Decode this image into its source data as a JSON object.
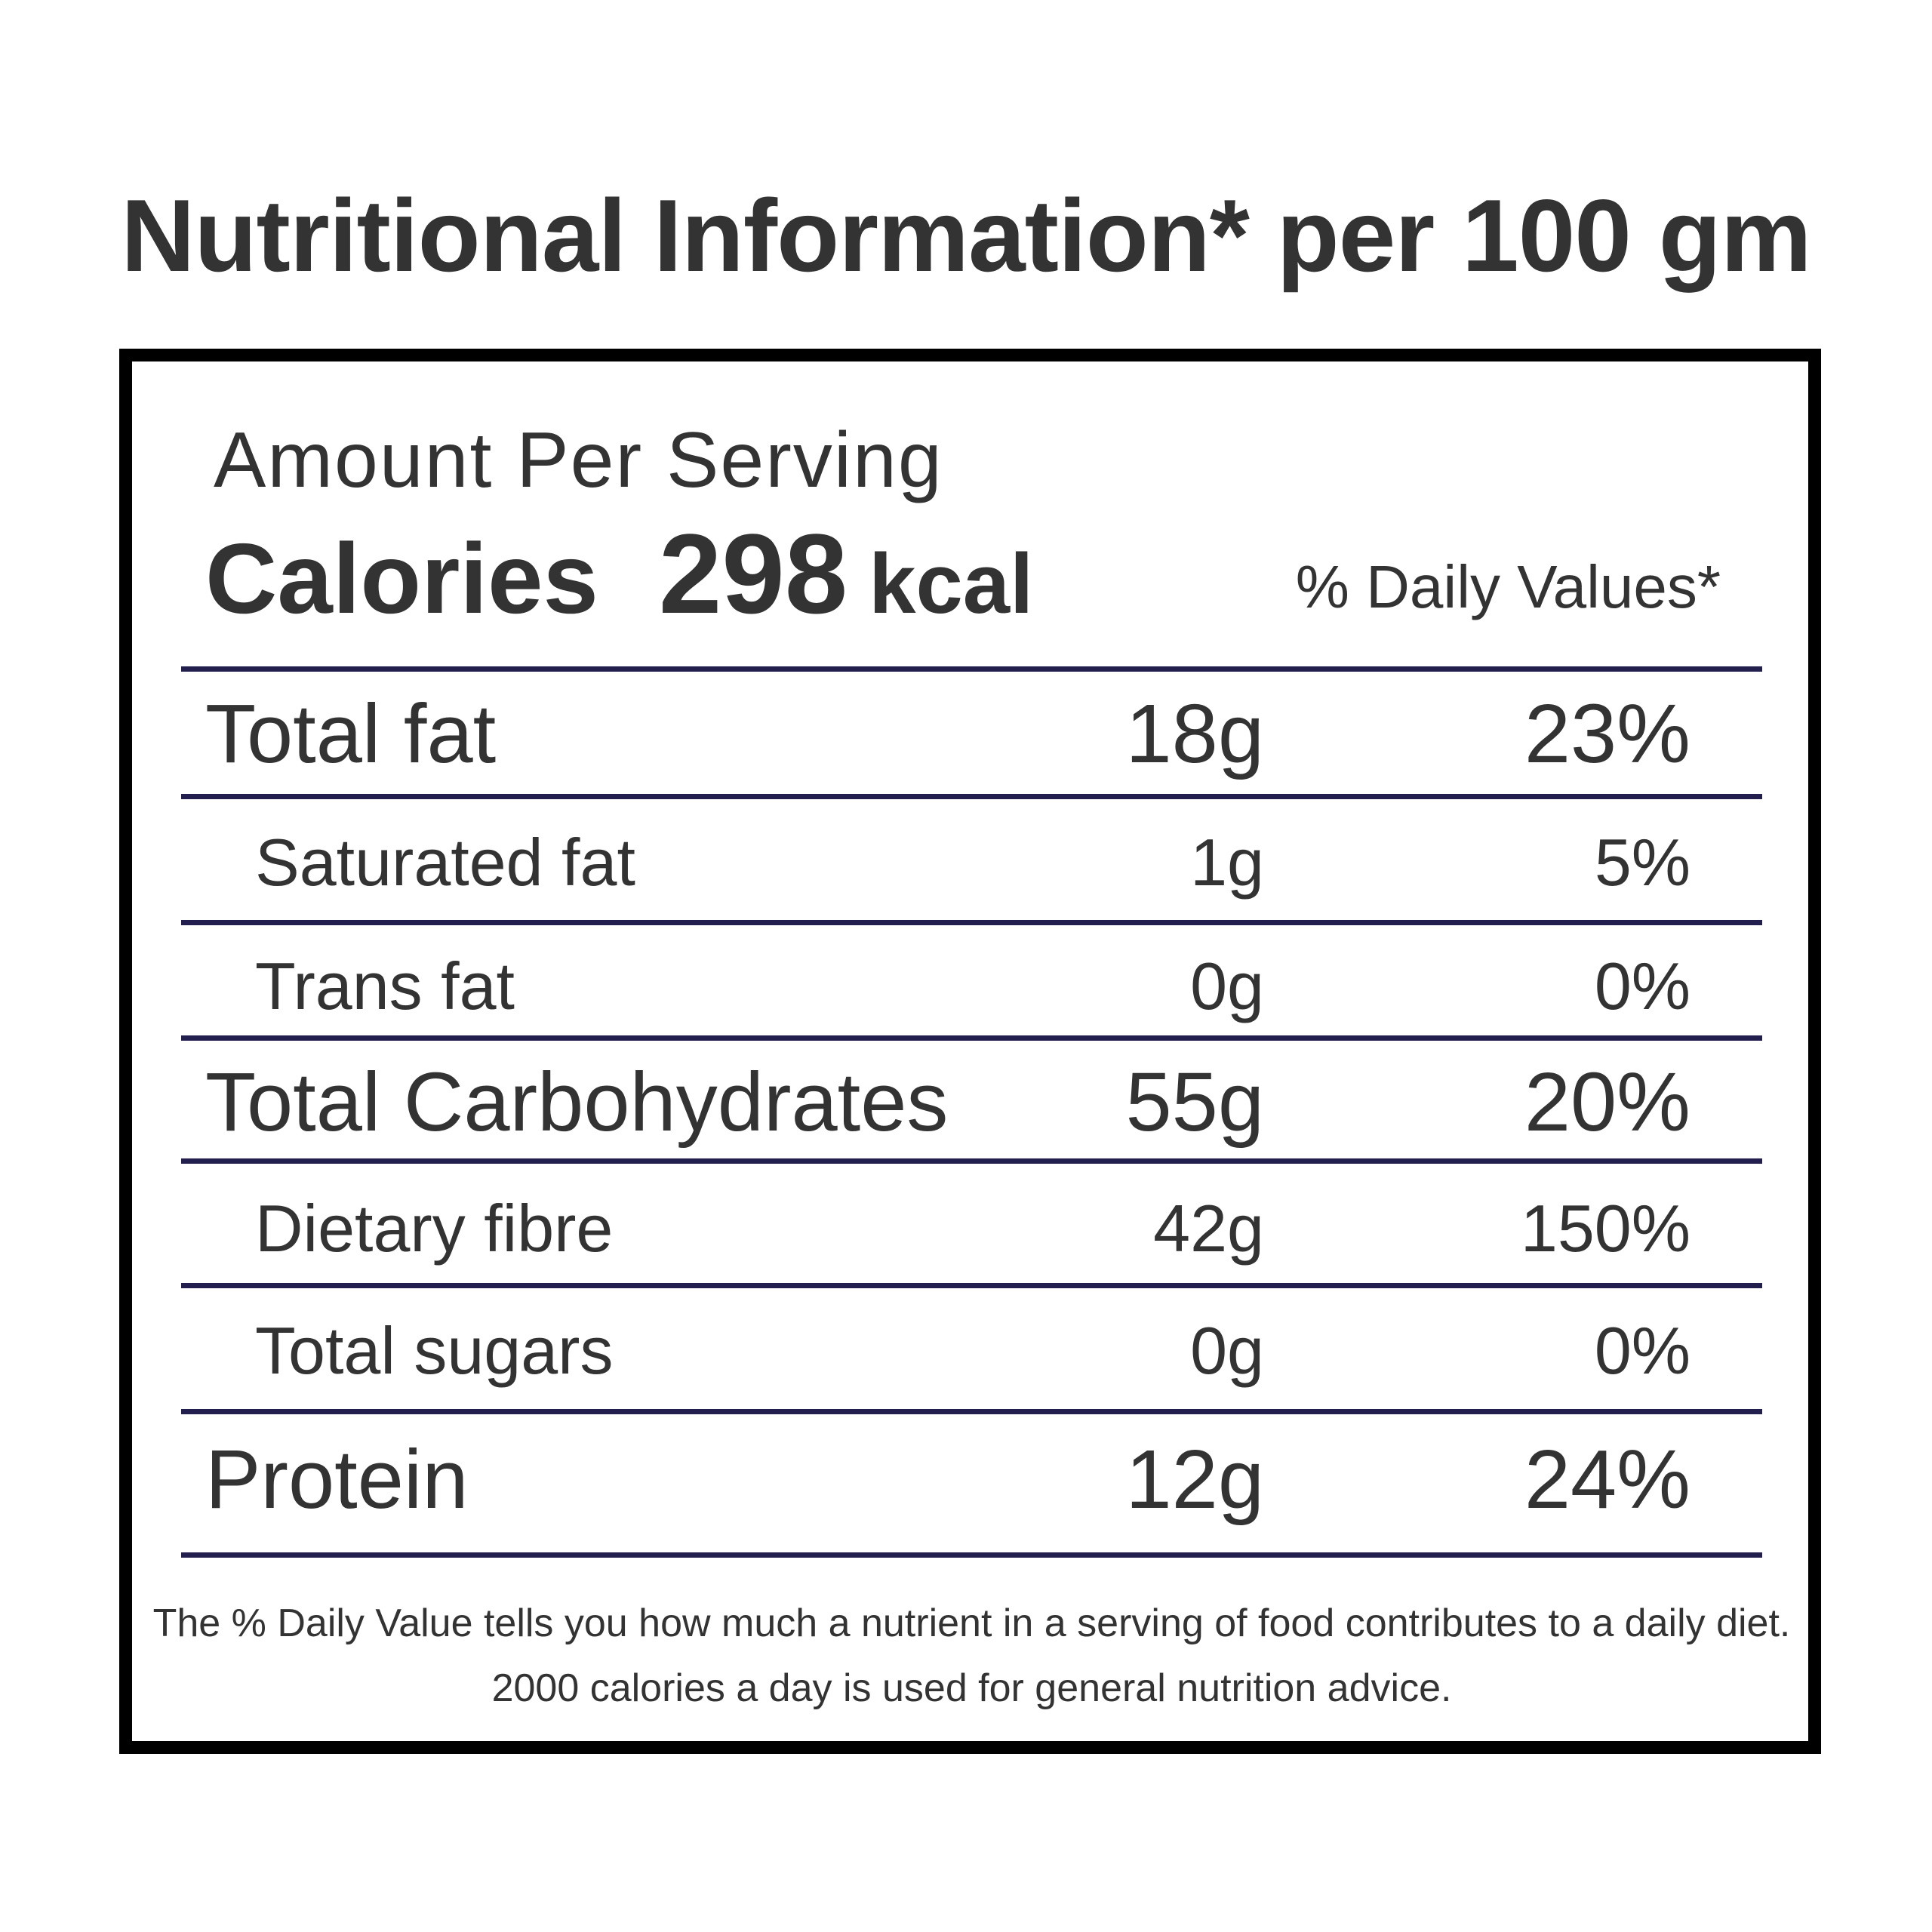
{
  "title": "Nutritional Information* per 100 gm",
  "header": {
    "amount_per_serving": "Amount Per Serving",
    "calories_label": "Calories",
    "calories_value": "298",
    "calories_unit": "kcal",
    "daily_values_label": "% Daily Values*"
  },
  "nutrients": [
    {
      "name": "Total fat",
      "amount": "18g",
      "daily_value": "23%"
    },
    {
      "name": "Saturated fat",
      "amount": "1g",
      "daily_value": "5%"
    },
    {
      "name": "Trans fat",
      "amount": "0g",
      "daily_value": "0%"
    },
    {
      "name": "Total Carbohydrates",
      "amount": "55g",
      "daily_value": "20%"
    },
    {
      "name": "Dietary fibre",
      "amount": "42g",
      "daily_value": "150%"
    },
    {
      "name": "Total sugars",
      "amount": "0g",
      "daily_value": "0%"
    },
    {
      "name": "Protein",
      "amount": "12g",
      "daily_value": "24%"
    }
  ],
  "footnote": "The % Daily Value tells you how much a nutrient in a serving of food contributes to a daily diet. 2000 calories a day is used for general nutrition advice.",
  "colors": {
    "text": "#333333",
    "rule": "#221f4e",
    "border": "#000000",
    "background": "#ffffff"
  }
}
